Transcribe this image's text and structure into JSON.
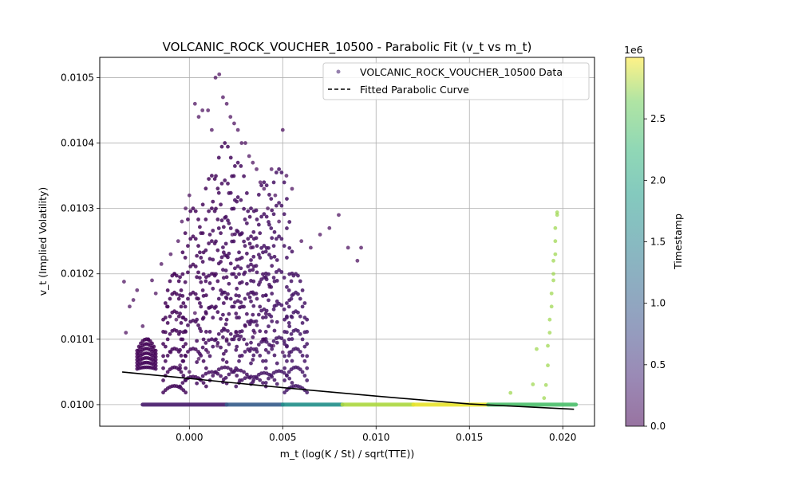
{
  "chart_data": {
    "type": "scatter",
    "title": "VOLCANIC_ROCK_VOUCHER_10500 - Parabolic Fit (v_t vs m_t)",
    "xlabel": "m_t (log(K / St) / sqrt(TTE))",
    "ylabel": "v_t (Implied Volatility)",
    "xlim": [
      -0.0048,
      0.0217
    ],
    "ylim": [
      0.009967,
      0.010531
    ],
    "x_ticks": [
      0.0,
      0.005,
      0.01,
      0.015,
      0.02
    ],
    "x_tick_labels": [
      "0.000",
      "0.005",
      "0.010",
      "0.015",
      "0.020"
    ],
    "y_ticks": [
      0.01,
      0.0101,
      0.0102,
      0.0103,
      0.0104,
      0.0105
    ],
    "y_tick_labels": [
      "0.0100",
      "0.0101",
      "0.0102",
      "0.0103",
      "0.0104",
      "0.0105"
    ],
    "grid": true,
    "legend_position": "top-right",
    "legend": [
      {
        "label": "VOLCANIC_ROCK_VOUCHER_10500 Data",
        "marker": "dot",
        "color": "#6a4c8c"
      },
      {
        "label": "Fitted Parabolic Curve",
        "marker": "dashed-line",
        "color": "#000000"
      }
    ],
    "colorbar": {
      "label": "Timestamp",
      "multiplier": "1e6",
      "range": [
        0,
        3000000
      ],
      "ticks": [
        0,
        500000,
        1000000,
        1500000,
        2000000,
        2500000
      ],
      "tick_labels": [
        "0.0",
        "0.5",
        "1.0",
        "1.5",
        "2.0",
        "2.5"
      ],
      "colormap": "viridis"
    },
    "fit": {
      "x": [
        -0.0036,
        0.0,
        0.005,
        0.01,
        0.015,
        0.0206
      ],
      "y": [
        0.01005,
        0.01004,
        0.010026,
        0.010013,
        0.010001,
        0.009993
      ]
    },
    "series": [
      {
        "timestamp": 50000,
        "x": [
          -0.0035,
          -0.0034,
          -0.0032,
          -0.003,
          -0.0028,
          -0.0025,
          -0.0022,
          -0.002,
          -0.0018,
          -0.0015,
          -0.0012,
          -0.001,
          -0.0008,
          -0.0006,
          -0.0004,
          -0.0002,
          0.0,
          0.0003,
          0.0005,
          0.0007,
          0.001,
          0.0012,
          0.0014,
          0.0016,
          0.0018,
          0.002,
          0.0022,
          0.0024,
          0.0026,
          0.0028,
          0.003,
          0.0032,
          0.0034,
          0.0036,
          0.0038,
          0.004,
          0.0042,
          0.0044,
          0.0046,
          0.0048,
          0.005,
          0.0052,
          0.0055,
          0.006,
          0.0065,
          0.007,
          0.0075,
          0.008,
          0.0085,
          0.009,
          0.0092,
          -0.001,
          -0.0005,
          0.0,
          0.0005,
          0.001,
          0.0015,
          0.002,
          0.0025,
          0.003,
          0.0035,
          0.004,
          0.0045,
          0.005,
          -0.0007,
          0.0003,
          0.0013,
          0.0023,
          0.0033,
          0.0043
        ],
        "y": [
          0.010188,
          0.01011,
          0.01015,
          0.01016,
          0.010175,
          0.01012,
          0.0101,
          0.01019,
          0.01017,
          0.010215,
          0.01015,
          0.01023,
          0.0102,
          0.01025,
          0.01028,
          0.0103,
          0.01032,
          0.01046,
          0.01044,
          0.01045,
          0.01045,
          0.01042,
          0.0105,
          0.010505,
          0.01047,
          0.01046,
          0.01044,
          0.01043,
          0.01042,
          0.0104,
          0.0104,
          0.01038,
          0.01037,
          0.01036,
          0.01034,
          0.01033,
          0.0103,
          0.01036,
          0.01032,
          0.01028,
          0.01042,
          0.01035,
          0.01033,
          0.01025,
          0.01024,
          0.01026,
          0.01027,
          0.01029,
          0.01024,
          0.01022,
          0.01024,
          0.01008,
          0.01006,
          0.01005,
          0.01007,
          0.01008,
          0.01009,
          0.0101,
          0.01011,
          0.01012,
          0.01011,
          0.0101,
          0.01009,
          0.01008,
          0.01013,
          0.01014,
          0.0102,
          0.01026,
          0.01024,
          0.01018
        ]
      },
      {
        "timestamp": 2750000,
        "x": [
          0.0172,
          0.0184,
          0.0186,
          0.019,
          0.0191,
          0.0192,
          0.0192,
          0.0193,
          0.0193,
          0.0194,
          0.0194,
          0.0195,
          0.0195,
          0.0195,
          0.0196,
          0.0196,
          0.0196,
          0.0197,
          0.0197
        ],
        "y": [
          0.010018,
          0.010031,
          0.010085,
          0.01001,
          0.01003,
          0.01006,
          0.01009,
          0.01011,
          0.01013,
          0.01015,
          0.01017,
          0.01019,
          0.0102,
          0.01022,
          0.01023,
          0.01025,
          0.01027,
          0.01029,
          0.010294
        ]
      }
    ]
  }
}
